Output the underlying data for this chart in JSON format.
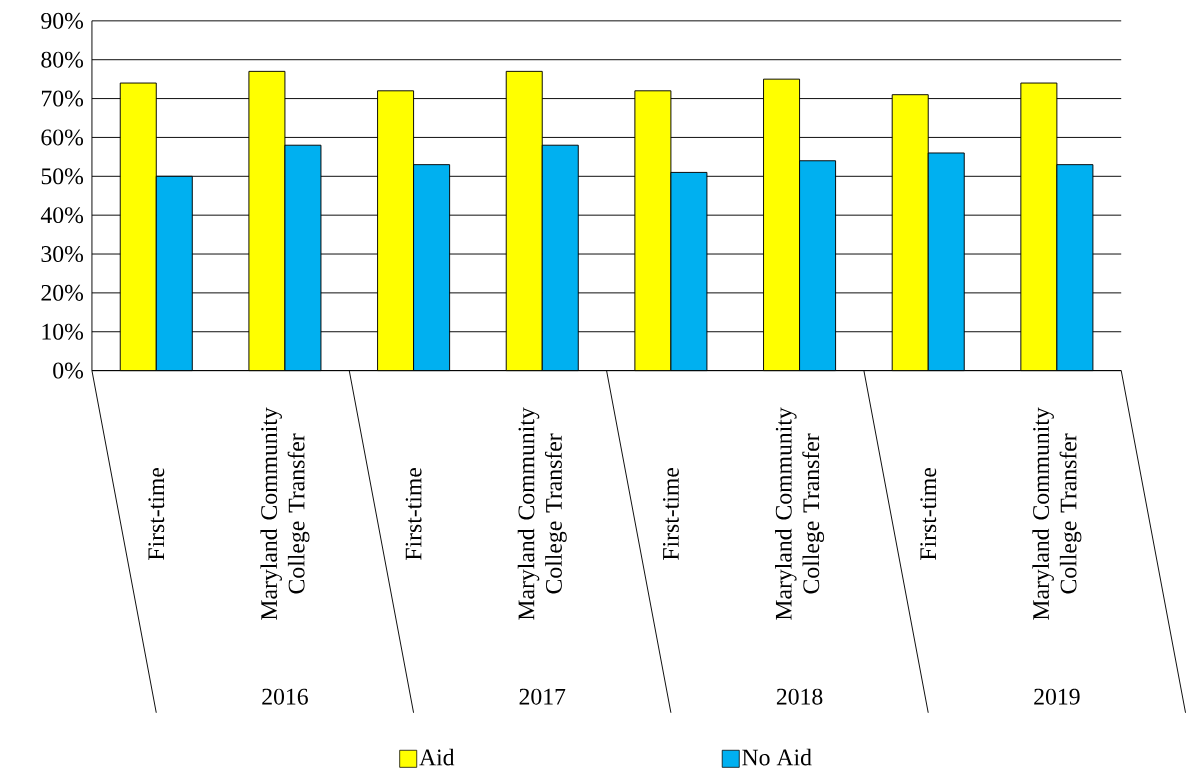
{
  "chart_data": {
    "type": "bar",
    "categories": [
      "First-time",
      "Maryland Community College Transfer",
      "First-time",
      "Maryland Community College Transfer",
      "First-time",
      "Maryland Community College Transfer",
      "First-time",
      "Maryland Community College Transfer"
    ],
    "series": [
      {
        "name": "Aid",
        "color": "#ffff00",
        "values": [
          74,
          77,
          72,
          77,
          72,
          75,
          71,
          74
        ]
      },
      {
        "name": "No Aid",
        "color": "#00b0f0",
        "values": [
          50,
          58,
          53,
          58,
          51,
          54,
          56,
          53
        ]
      }
    ],
    "annotations": [
      "2016",
      "2017",
      "2018",
      "2019"
    ],
    "ylim": [
      0,
      90
    ],
    "yticks": [
      {
        "value": 0,
        "label": "0%"
      },
      {
        "value": 10,
        "label": "10%"
      },
      {
        "value": 20,
        "label": "20%"
      },
      {
        "value": 30,
        "label": "30%"
      },
      {
        "value": 40,
        "label": "40%"
      },
      {
        "value": 50,
        "label": "50%"
      },
      {
        "value": 60,
        "label": "60%"
      },
      {
        "value": 70,
        "label": "70%"
      },
      {
        "value": 80,
        "label": "80%"
      },
      {
        "value": 90,
        "label": "90%"
      }
    ],
    "grid": "y",
    "legend": "bottom"
  }
}
